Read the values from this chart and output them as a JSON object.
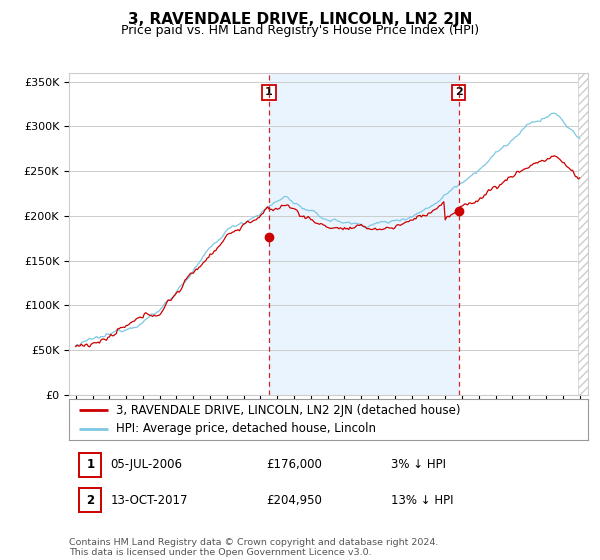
{
  "title": "3, RAVENDALE DRIVE, LINCOLN, LN2 2JN",
  "subtitle": "Price paid vs. HM Land Registry's House Price Index (HPI)",
  "ylim": [
    0,
    360000
  ],
  "yticks": [
    0,
    50000,
    100000,
    150000,
    200000,
    250000,
    300000,
    350000
  ],
  "ytick_labels": [
    "£0",
    "£50K",
    "£100K",
    "£150K",
    "£200K",
    "£250K",
    "£300K",
    "£350K"
  ],
  "sale1_year": 2006.5,
  "sale1_price": 176000,
  "sale2_year": 2017.79,
  "sale2_price": 204950,
  "line_color_property": "#cc0000",
  "line_color_hpi": "#7ec8e3",
  "vline_color": "#cc0000",
  "shade_color": "#ddeeff",
  "grid_color": "#cccccc",
  "bg_color": "#ffffff",
  "legend_label_property": "3, RAVENDALE DRIVE, LINCOLN, LN2 2JN (detached house)",
  "legend_label_hpi": "HPI: Average price, detached house, Lincoln",
  "sale1_info_num": "1",
  "sale1_info_date": "05-JUL-2006",
  "sale1_info_price": "£176,000",
  "sale1_info_pct": "3% ↓ HPI",
  "sale2_info_num": "2",
  "sale2_info_date": "13-OCT-2017",
  "sale2_info_price": "£204,950",
  "sale2_info_pct": "13% ↓ HPI",
  "footer": "Contains HM Land Registry data © Crown copyright and database right 2024.\nThis data is licensed under the Open Government Licence v3.0.",
  "title_fontsize": 11,
  "subtitle_fontsize": 9,
  "tick_fontsize": 8,
  "legend_fontsize": 8.5
}
